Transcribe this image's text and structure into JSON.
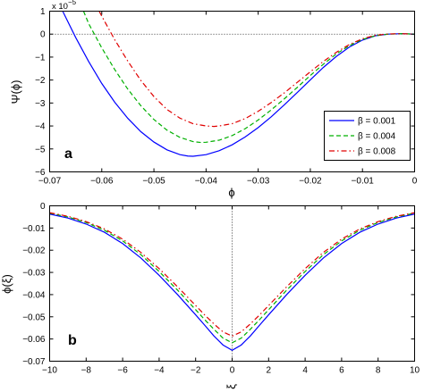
{
  "chart_data": [
    {
      "type": "line",
      "panel_label": "a",
      "xlabel": "ϕ",
      "ylabel": "Ψ(ϕ)",
      "y_multiplier": "x 10",
      "y_multiplier_exponent": "−5",
      "xlim": [
        -0.07,
        0
      ],
      "ylim": [
        -6,
        1
      ],
      "xticks": [
        -0.07,
        -0.06,
        -0.05,
        -0.04,
        -0.03,
        -0.02,
        -0.01,
        0
      ],
      "xtick_labels": [
        "−0.07",
        "−0.06",
        "−0.05",
        "−0.04",
        "−0.03",
        "−0.02",
        "−0.01",
        "0"
      ],
      "yticks": [
        -6,
        -5,
        -4,
        -3,
        -2,
        -1,
        0,
        1
      ],
      "ytick_labels": [
        "−6",
        "−5",
        "−4",
        "−3",
        "−2",
        "−1",
        "0",
        "1"
      ],
      "reference_line": {
        "orientation": "horizontal",
        "value": 0
      },
      "legend_position": "lower-right",
      "series": [
        {
          "name": "β = 0.001",
          "color": "#0000ff",
          "dash": "solid",
          "x": [
            -0.0675,
            -0.065,
            -0.0625,
            -0.06,
            -0.0575,
            -0.055,
            -0.0525,
            -0.05,
            -0.0475,
            -0.045,
            -0.0435,
            -0.0425,
            -0.04,
            -0.0375,
            -0.035,
            -0.0325,
            -0.03,
            -0.0275,
            -0.025,
            -0.0225,
            -0.02,
            -0.0175,
            -0.015,
            -0.0125,
            -0.01,
            -0.0075,
            -0.005,
            -0.0025,
            0
          ],
          "y": [
            1.0,
            -0.15,
            -1.2,
            -2.15,
            -2.97,
            -3.67,
            -4.25,
            -4.7,
            -5.04,
            -5.25,
            -5.31,
            -5.32,
            -5.25,
            -5.08,
            -4.82,
            -4.48,
            -4.07,
            -3.6,
            -3.08,
            -2.54,
            -1.99,
            -1.45,
            -0.97,
            -0.56,
            -0.26,
            -0.07,
            0.0,
            0.02,
            0.0
          ]
        },
        {
          "name": "β = 0.004",
          "color": "#00b000",
          "dash": "dashed",
          "x": [
            -0.0635,
            -0.0625,
            -0.06,
            -0.0575,
            -0.055,
            -0.0525,
            -0.05,
            -0.0475,
            -0.045,
            -0.0425,
            -0.041,
            -0.04,
            -0.0375,
            -0.035,
            -0.0325,
            -0.03,
            -0.0275,
            -0.025,
            -0.0225,
            -0.02,
            -0.0175,
            -0.015,
            -0.0125,
            -0.01,
            -0.0075,
            -0.005,
            -0.0025,
            0
          ],
          "y": [
            1.0,
            0.45,
            -0.6,
            -1.55,
            -2.4,
            -3.12,
            -3.72,
            -4.18,
            -4.5,
            -4.68,
            -4.72,
            -4.71,
            -4.62,
            -4.42,
            -4.12,
            -3.74,
            -3.3,
            -2.82,
            -2.32,
            -1.8,
            -1.31,
            -0.86,
            -0.5,
            -0.23,
            -0.07,
            0.0,
            0.02,
            0.0
          ]
        },
        {
          "name": "β = 0.008",
          "color": "#e00000",
          "dash": "dashdot",
          "x": [
            -0.0605,
            -0.06,
            -0.0575,
            -0.055,
            -0.0525,
            -0.05,
            -0.0475,
            -0.045,
            -0.0425,
            -0.04,
            -0.0385,
            -0.0375,
            -0.035,
            -0.0325,
            -0.03,
            -0.0275,
            -0.025,
            -0.0225,
            -0.02,
            -0.0175,
            -0.015,
            -0.0125,
            -0.01,
            -0.0075,
            -0.005,
            -0.0025,
            0
          ],
          "y": [
            1.0,
            0.78,
            -0.25,
            -1.18,
            -2.02,
            -2.72,
            -3.28,
            -3.66,
            -3.9,
            -4.0,
            -4.02,
            -4.0,
            -3.9,
            -3.68,
            -3.36,
            -2.98,
            -2.56,
            -2.1,
            -1.64,
            -1.19,
            -0.79,
            -0.45,
            -0.2,
            -0.05,
            0.01,
            0.02,
            0.0
          ]
        }
      ]
    },
    {
      "type": "line",
      "panel_label": "b",
      "xlabel": "ξ",
      "ylabel": "ϕ(ξ)",
      "xlim": [
        -10,
        10
      ],
      "ylim": [
        -0.07,
        0
      ],
      "xticks": [
        -10,
        -8,
        -6,
        -4,
        -2,
        0,
        2,
        4,
        6,
        8,
        10
      ],
      "xtick_labels": [
        "−10",
        "−8",
        "−6",
        "−4",
        "−2",
        "0",
        "2",
        "4",
        "6",
        "8",
        "10"
      ],
      "yticks": [
        -0.07,
        -0.06,
        -0.05,
        -0.04,
        -0.03,
        -0.02,
        -0.01,
        0
      ],
      "ytick_labels": [
        "−0.07",
        "−0.06",
        "−0.05",
        "−0.04",
        "−0.03",
        "−0.02",
        "−0.01",
        "0"
      ],
      "reference_line": {
        "orientation": "vertical",
        "value": 0
      },
      "series": [
        {
          "name": "β = 0.001",
          "color": "#0000ff",
          "dash": "solid",
          "x": [
            -10,
            -9,
            -8,
            -7,
            -6,
            -5,
            -4,
            -3,
            -2,
            -1.5,
            -1,
            -0.5,
            0,
            0.5,
            1,
            1.5,
            2,
            3,
            4,
            5,
            6,
            7,
            8,
            9,
            10
          ],
          "y": [
            -0.0037,
            -0.0055,
            -0.0082,
            -0.0119,
            -0.017,
            -0.0235,
            -0.0313,
            -0.0399,
            -0.0491,
            -0.0538,
            -0.0586,
            -0.0627,
            -0.0651,
            -0.0627,
            -0.0586,
            -0.0538,
            -0.0491,
            -0.0399,
            -0.0313,
            -0.0235,
            -0.017,
            -0.0119,
            -0.0082,
            -0.0055,
            -0.0037
          ]
        },
        {
          "name": "β = 0.004",
          "color": "#00b000",
          "dash": "dashed",
          "x": [
            -10,
            -9,
            -8,
            -7,
            -6,
            -5,
            -4,
            -3,
            -2,
            -1.5,
            -1,
            -0.5,
            0,
            0.5,
            1,
            1.5,
            2,
            3,
            4,
            5,
            6,
            7,
            8,
            9,
            10
          ],
          "y": [
            -0.0033,
            -0.005,
            -0.0075,
            -0.011,
            -0.0158,
            -0.022,
            -0.0296,
            -0.0379,
            -0.0468,
            -0.0513,
            -0.0556,
            -0.0596,
            -0.0617,
            -0.0596,
            -0.0556,
            -0.0513,
            -0.0468,
            -0.0379,
            -0.0296,
            -0.022,
            -0.0158,
            -0.011,
            -0.0075,
            -0.005,
            -0.0033
          ]
        },
        {
          "name": "β = 0.008",
          "color": "#e00000",
          "dash": "dashdot",
          "x": [
            -10,
            -9,
            -8,
            -7,
            -6,
            -5,
            -4,
            -3,
            -2,
            -1.5,
            -1,
            -0.5,
            0,
            0.5,
            1,
            1.5,
            2,
            3,
            4,
            5,
            6,
            7,
            8,
            9,
            10
          ],
          "y": [
            -0.0031,
            -0.0047,
            -0.0071,
            -0.0104,
            -0.015,
            -0.021,
            -0.0283,
            -0.0364,
            -0.0449,
            -0.0492,
            -0.0532,
            -0.0568,
            -0.0587,
            -0.0568,
            -0.0532,
            -0.0492,
            -0.0449,
            -0.0364,
            -0.0283,
            -0.021,
            -0.015,
            -0.0104,
            -0.0071,
            -0.0047,
            -0.0031
          ]
        }
      ]
    }
  ]
}
